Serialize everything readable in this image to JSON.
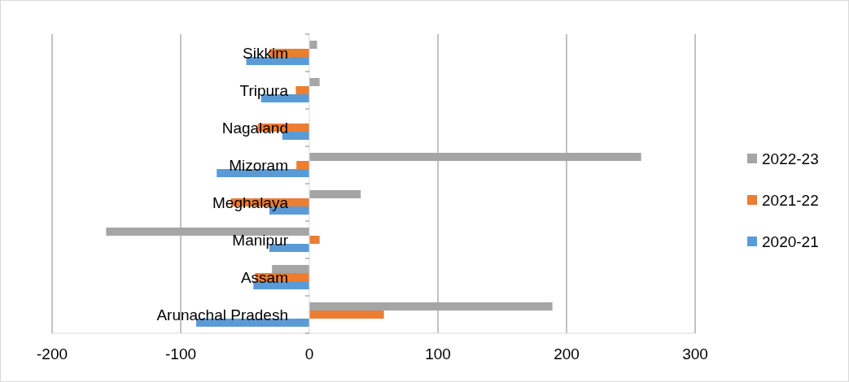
{
  "chart_data": {
    "type": "bar",
    "orientation": "horizontal",
    "categories": [
      "Sikkim",
      "Tripura",
      "Nagaland",
      "Mizoram",
      "Meghalaya",
      "Manipur",
      "Assam",
      "Arunachal Pradesh"
    ],
    "series": [
      {
        "name": "2022-23",
        "color": "#a5a5a5",
        "values": [
          6,
          8,
          null,
          258,
          40,
          -158,
          -29,
          189
        ]
      },
      {
        "name": "2021-22",
        "color": "#ed7d31",
        "values": [
          -31,
          -10.5,
          -40,
          -10,
          -61,
          8,
          -42,
          58
        ]
      },
      {
        "name": "2020-21",
        "color": "#5b9bd5",
        "values": [
          -49,
          -37.5,
          -21,
          -72,
          -31,
          -31,
          -43.5,
          -88
        ]
      }
    ],
    "xlim": [
      -200,
      300
    ],
    "xticks": [
      -200,
      -100,
      0,
      100,
      200,
      300
    ],
    "grid": "x",
    "legend": "right"
  }
}
